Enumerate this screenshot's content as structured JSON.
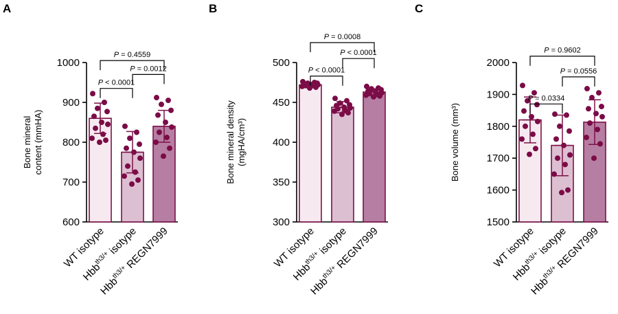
{
  "colors": {
    "stroke": "#7d1048",
    "dot": "#7b0b47",
    "fills": [
      "#f6eaf0",
      "#ddbfd2",
      "#b67ea2"
    ]
  },
  "chart_data": [
    {
      "type": "bar",
      "panel": "A",
      "ylabel_lines": [
        "Bone mineral",
        "content (mmHA)"
      ],
      "ylim": [
        600,
        1000
      ],
      "yticks": [
        600,
        700,
        800,
        900,
        1000
      ],
      "categories": [
        {
          "main": "WT isotype",
          "sup": "",
          "rest": ""
        },
        {
          "main": "Hbb",
          "sup": "th3/+",
          "rest": " isotype"
        },
        {
          "main": "Hbb",
          "sup": "th3/+",
          "rest": " REGN7999"
        }
      ],
      "values": [
        860,
        775,
        840
      ],
      "sd": [
        38,
        52,
        40
      ],
      "points": [
        [
          922,
          900,
          885,
          877,
          865,
          850,
          845,
          835,
          820,
          810,
          805,
          800
        ],
        [
          840,
          825,
          810,
          795,
          785,
          775,
          760,
          740,
          725,
          715,
          705,
          695
        ],
        [
          912,
          905,
          895,
          880,
          868,
          850,
          838,
          825,
          812,
          800,
          785,
          765
        ]
      ],
      "comparisons": [
        {
          "from": 0,
          "to": 1,
          "label": "P < 0.0001",
          "y": 935
        },
        {
          "from": 1,
          "to": 2,
          "label": "P = 0.0012",
          "y": 970
        },
        {
          "from": 0,
          "to": 2,
          "label": "P = 0.4559",
          "y": 1005
        }
      ]
    },
    {
      "type": "bar",
      "panel": "B",
      "ylabel_lines": [
        "Bone mineral density",
        "(mgHA/cm³)"
      ],
      "ylim": [
        300,
        500
      ],
      "yticks": [
        300,
        350,
        400,
        450,
        500
      ],
      "categories": [
        {
          "main": "WT isotype",
          "sup": "",
          "rest": ""
        },
        {
          "main": "Hbb",
          "sup": "th3/+",
          "rest": " isotype"
        },
        {
          "main": "Hbb",
          "sup": "th3/+",
          "rest": " REGN7999"
        }
      ],
      "values": [
        472,
        444,
        463
      ],
      "sd": [
        3,
        7,
        4
      ],
      "points": [
        [
          476,
          475,
          474,
          474,
          473,
          472,
          472,
          471,
          471,
          470,
          469,
          468
        ],
        [
          455,
          452,
          449,
          447,
          446,
          444,
          443,
          442,
          440,
          439,
          437,
          435
        ],
        [
          470,
          468,
          467,
          466,
          464,
          463,
          462,
          461,
          460,
          459,
          458,
          457
        ]
      ],
      "comparisons": [
        {
          "from": 0,
          "to": 1,
          "label": "P < 0.0001",
          "y": 483
        },
        {
          "from": 1,
          "to": 2,
          "label": "P < 0.0001",
          "y": 505
        },
        {
          "from": 0,
          "to": 2,
          "label": "P = 0.0008",
          "y": 525
        }
      ]
    },
    {
      "type": "bar",
      "panel": "C",
      "ylabel_lines": [
        "Bone volume (mm³)"
      ],
      "ylim": [
        1500,
        2000
      ],
      "yticks": [
        1500,
        1600,
        1700,
        1800,
        1900,
        2000
      ],
      "categories": [
        {
          "main": "WT isotype",
          "sup": "",
          "rest": ""
        },
        {
          "main": "Hbb",
          "sup": "th3/+",
          "rest": " isotype"
        },
        {
          "main": "Hbb",
          "sup": "th3/+",
          "rest": " REGN7999"
        }
      ],
      "values": [
        1820,
        1740,
        1813
      ],
      "sd": [
        72,
        95,
        70
      ],
      "points": [
        [
          1928,
          1905,
          1880,
          1868,
          1848,
          1830,
          1815,
          1800,
          1775,
          1760,
          1730,
          1712
        ],
        [
          1838,
          1835,
          1800,
          1785,
          1760,
          1740,
          1710,
          1700,
          1680,
          1650,
          1600,
          1592
        ],
        [
          1918,
          1905,
          1890,
          1862,
          1855,
          1840,
          1830,
          1810,
          1790,
          1765,
          1745,
          1700
        ]
      ],
      "comparisons": [
        {
          "from": 0,
          "to": 1,
          "label": "P = 0.0334",
          "y": 1870
        },
        {
          "from": 1,
          "to": 2,
          "label": "P = 0.0556",
          "y": 1955
        },
        {
          "from": 0,
          "to": 2,
          "label": "P = 0.9602",
          "y": 2020
        }
      ]
    }
  ]
}
